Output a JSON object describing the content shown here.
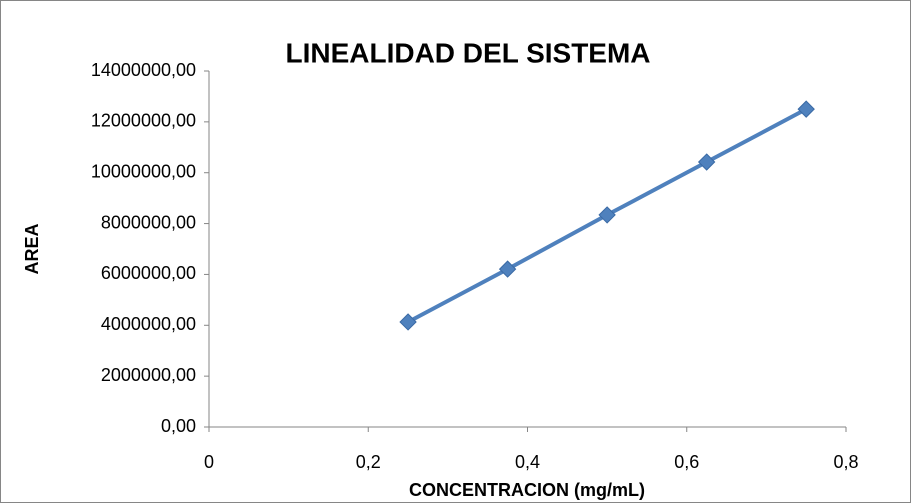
{
  "chart_data": {
    "type": "line",
    "title": "LINEALIDAD DEL SISTEMA",
    "x_label": "CONCENTRACION (mg/mL)",
    "y_label": "AREA",
    "x": [
      0.25,
      0.375,
      0.5,
      0.625,
      0.75
    ],
    "series": [
      {
        "color": "#4f81bd",
        "values": [
          4130000,
          6210000,
          8340000,
          10420000,
          12500000
        ]
      }
    ],
    "xlim": [
      0,
      0.8
    ],
    "xticks": [
      0,
      {
        "value": 0.2,
        "label": "0,2"
      },
      {
        "value": 0.4,
        "label": "0,4"
      },
      {
        "value": 0.6,
        "label": "0,6"
      },
      {
        "value": 0.8,
        "label": "0,8"
      }
    ],
    "ylim": [
      0,
      14000000
    ],
    "yticks": [
      {
        "value": 0,
        "label": "0,00"
      },
      {
        "value": 2000000,
        "label": "2000000,00"
      },
      {
        "value": 4000000,
        "label": "4000000,00"
      },
      {
        "value": 6000000,
        "label": "6000000,00"
      },
      {
        "value": 8000000,
        "label": "8000000,00"
      },
      {
        "value": 10000000,
        "label": "10000000,00"
      },
      {
        "value": 12000000,
        "label": "12000000,00"
      },
      {
        "value": 14000000,
        "label": "14000000,00"
      }
    ],
    "grid": false
  }
}
